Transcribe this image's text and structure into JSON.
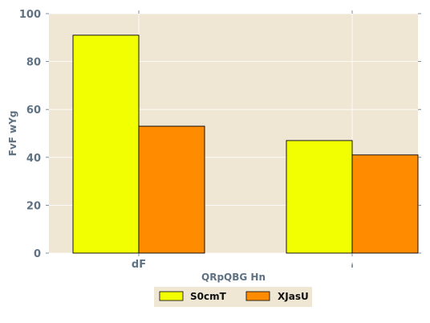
{
  "chart_data": {
    "type": "bar",
    "categories": [
      "dF",
      "ᵢ"
    ],
    "series": [
      {
        "name": "S0cmT",
        "values": [
          91,
          47
        ],
        "color": "#f2ff00"
      },
      {
        "name": "XJasU",
        "values": [
          53,
          41
        ],
        "color": "#ff8c00"
      }
    ],
    "xlabel": "QRpQBG Hn",
    "ylabel": "FvF wYg",
    "ylim": [
      0,
      100
    ],
    "yticks": [
      0,
      20,
      40,
      60,
      80,
      100
    ],
    "grid": true,
    "legend_position": "bottom-center"
  },
  "colors": {
    "plot_background": "#efe6d4",
    "legend_background": "#efe6d4",
    "gridline": "#ffffff",
    "tick_text": "#5f7283",
    "bar_edge": "#000000"
  }
}
